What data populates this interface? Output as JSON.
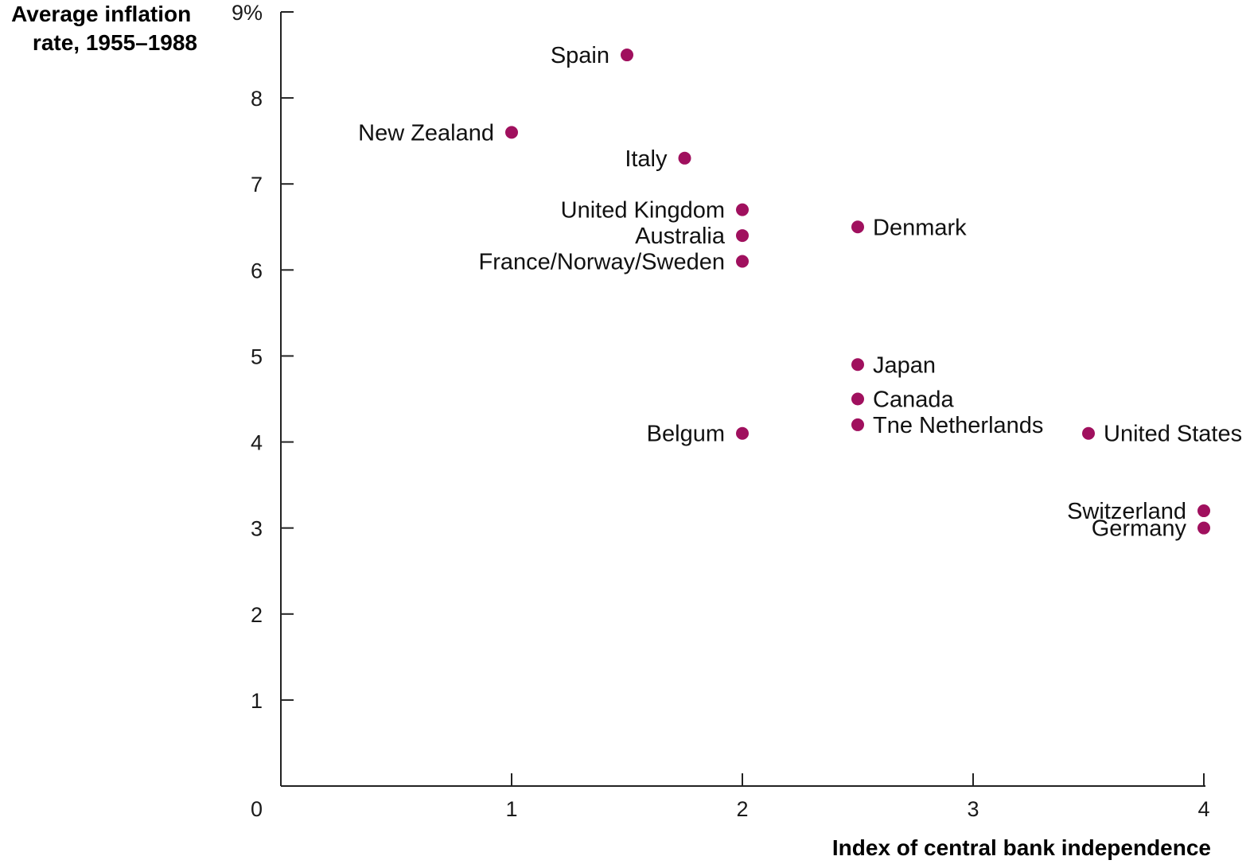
{
  "chart_data": {
    "type": "scatter",
    "title": "",
    "ylabel": [
      "Average inflation",
      "rate, 1955–1988"
    ],
    "xlabel": "Index of central bank independence",
    "xlim": [
      0,
      4
    ],
    "ylim": [
      0,
      9
    ],
    "x_ticks": [
      {
        "value": 1,
        "label": "1"
      },
      {
        "value": 2,
        "label": "2"
      },
      {
        "value": 3,
        "label": "3"
      },
      {
        "value": 4,
        "label": "4"
      }
    ],
    "y_ticks": [
      {
        "value": 1,
        "label": "1"
      },
      {
        "value": 2,
        "label": "2"
      },
      {
        "value": 3,
        "label": "3"
      },
      {
        "value": 4,
        "label": "4"
      },
      {
        "value": 5,
        "label": "5"
      },
      {
        "value": 6,
        "label": "6"
      },
      {
        "value": 7,
        "label": "7"
      },
      {
        "value": 8,
        "label": "8"
      },
      {
        "value": 9,
        "label": "9%"
      }
    ],
    "origin_label": "0",
    "grid": false,
    "marker_color": "#a0105e",
    "points": [
      {
        "label": "Spain",
        "x": 1.5,
        "y": 8.5,
        "label_side": "left"
      },
      {
        "label": "New Zealand",
        "x": 1.0,
        "y": 7.6,
        "label_side": "left"
      },
      {
        "label": "Italy",
        "x": 1.75,
        "y": 7.3,
        "label_side": "left"
      },
      {
        "label": "United Kingdom",
        "x": 2.0,
        "y": 6.7,
        "label_side": "left"
      },
      {
        "label": "Australia",
        "x": 2.0,
        "y": 6.4,
        "label_side": "left"
      },
      {
        "label": "France/Norway/Sweden",
        "x": 2.0,
        "y": 6.1,
        "label_side": "left"
      },
      {
        "label": "Denmark",
        "x": 2.5,
        "y": 6.5,
        "label_side": "right"
      },
      {
        "label": "Japan",
        "x": 2.5,
        "y": 4.9,
        "label_side": "right"
      },
      {
        "label": "Canada",
        "x": 2.5,
        "y": 4.5,
        "label_side": "right"
      },
      {
        "label": "Tne Netherlands",
        "x": 2.5,
        "y": 4.2,
        "label_side": "right"
      },
      {
        "label": "Belgum",
        "x": 2.0,
        "y": 4.1,
        "label_side": "left"
      },
      {
        "label": "United States",
        "x": 3.5,
        "y": 4.1,
        "label_side": "right"
      },
      {
        "label": "Switzerland",
        "x": 4.0,
        "y": 3.2,
        "label_side": "left"
      },
      {
        "label": "Germany",
        "x": 4.0,
        "y": 3.0,
        "label_side": "left"
      }
    ]
  }
}
